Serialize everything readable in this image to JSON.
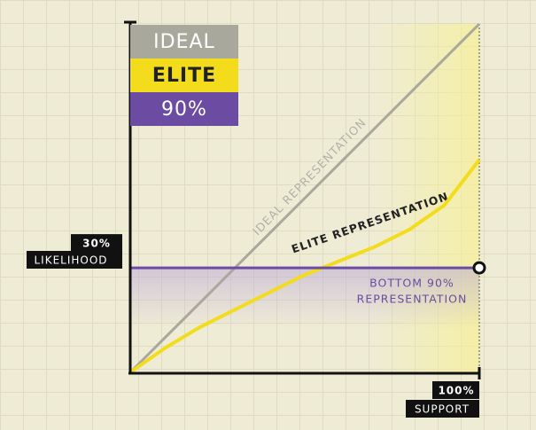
{
  "chart_data": {
    "type": "line",
    "x": [
      0,
      10,
      20,
      30,
      40,
      50,
      60,
      70,
      80,
      90,
      100
    ],
    "series": [
      {
        "name": "IDEAL",
        "color": "#a9a89c",
        "values": [
          0,
          10,
          20,
          30,
          40,
          50,
          60,
          70,
          80,
          90,
          100
        ]
      },
      {
        "name": "ELITE",
        "color": "#f2dc1c",
        "values": [
          0,
          7,
          13,
          18,
          23,
          28,
          32,
          36,
          41,
          48,
          61
        ]
      },
      {
        "name": "90%",
        "color": "#6b4ca2",
        "values": [
          30,
          30,
          30,
          30,
          30,
          30,
          30,
          30,
          30,
          30,
          30
        ]
      }
    ],
    "xlim": [
      0,
      100
    ],
    "ylim": [
      0,
      100
    ],
    "xticks": [
      {
        "value": 100,
        "label": "100%"
      }
    ],
    "yticks": [
      {
        "value": 30,
        "label": "30%"
      }
    ],
    "xlabel": "SUPPORT",
    "ylabel": "LIKELIHOOD",
    "annotations": [
      "IDEAL REPRESENTATION",
      "ELITE REPRESENTATION",
      "BOTTOM 90%",
      "REPRESENTATION"
    ]
  }
}
